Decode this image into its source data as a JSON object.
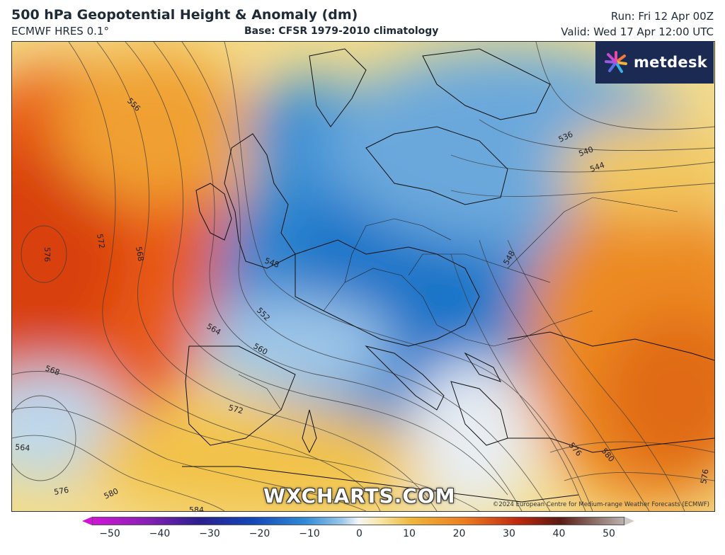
{
  "header": {
    "title": "500 hPa Geopotential Height & Anomaly (dm)",
    "model": "ECMWF HRES 0.1°",
    "base": "Base: CFSR 1979-2010 climatology",
    "run": "Run: Fri 12 Apr 00Z",
    "valid": "Valid: Wed 17 Apr 12:00 UTC"
  },
  "branding": {
    "logo_text": "metdesk",
    "watermark": "WXCHARTS.COM",
    "copyright": "©2024 European Centre for Medium-range Weather Forecasts (ECMWF)"
  },
  "contour_labels": [
    "556",
    "572",
    "576",
    "568",
    "564",
    "568",
    "564",
    "560",
    "552",
    "548",
    "572",
    "580",
    "584",
    "576",
    "548",
    "536",
    "540",
    "544",
    "576",
    "580",
    "576"
  ],
  "colorbar": {
    "ticks": [
      "−50",
      "−40",
      "−30",
      "−20",
      "−10",
      "0",
      "10",
      "20",
      "30",
      "40",
      "50"
    ],
    "range": [
      -50,
      50
    ],
    "colors": [
      "#d015d6",
      "#2b1f8f",
      "#1346b8",
      "#2f8ad6",
      "#f4f6f8",
      "#f0b53a",
      "#ec7d1f",
      "#c0280e",
      "#5a1a12",
      "#b9b2ae"
    ]
  }
}
